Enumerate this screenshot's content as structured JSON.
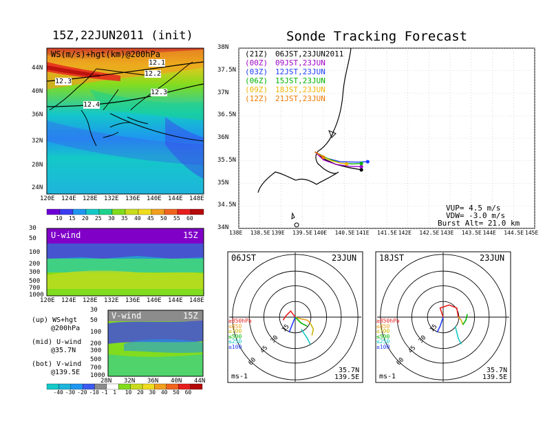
{
  "titles": {
    "left": "15Z,22JUN2011 (init)",
    "right": "Sonde Tracking Forecast"
  },
  "top_map": {
    "label": "WS(m/s)+hgt(km)@200hPa",
    "x_ticks": [
      "120E",
      "124E",
      "128E",
      "132E",
      "136E",
      "140E",
      "144E",
      "148E"
    ],
    "y_ticks": [
      "44N",
      "40N",
      "36N",
      "32N",
      "28N",
      "24N"
    ],
    "contour_labels": [
      "12.1",
      "12.2",
      "12.3",
      "12.3",
      "12.4"
    ]
  },
  "ws_colorbar": {
    "labels": [
      "10",
      "15",
      "20",
      "25",
      "30",
      "35",
      "40",
      "45",
      "50",
      "55",
      "60"
    ],
    "colors": [
      "#6b00d6",
      "#3c3cf0",
      "#1e96f0",
      "#14c8c8",
      "#1ed28c",
      "#82dc1e",
      "#c8dc1e",
      "#f0dc1e",
      "#f0a01e",
      "#f0641e",
      "#e61e1e",
      "#b40a0a"
    ]
  },
  "u_panel": {
    "label": "U-wind",
    "time": "15Z",
    "y_ticks": [
      "30",
      "50",
      "100",
      "200",
      "300",
      "500",
      "700",
      "1000"
    ],
    "x_ticks": [
      "120E",
      "124E",
      "128E",
      "132E",
      "136E",
      "140E",
      "144E",
      "148E"
    ]
  },
  "v_panel": {
    "label": "V-wind",
    "time": "15Z",
    "y_ticks": [
      "30",
      "50",
      "100",
      "200",
      "300",
      "500",
      "700",
      "1000"
    ],
    "x_ticks": [
      "28N",
      "32N",
      "36N",
      "40N",
      "44N"
    ]
  },
  "legend_notes": {
    "up_1": "(up) WS+hgt",
    "up_2": "@200hPa",
    "mid_1": "(mid) U-wind",
    "mid_2": "@35.7N",
    "bot_1": "(bot) V-wind",
    "bot_2": "@139.5E"
  },
  "v_colorbar": {
    "labels": [
      "-40",
      "-30",
      "-20",
      "-10",
      "-1",
      "1",
      "10",
      "20",
      "30",
      "40",
      "50",
      "60"
    ],
    "colors": [
      "#14c8c8",
      "#1eb4dc",
      "#1e96f0",
      "#3c5af0",
      "#8c8c8c",
      "#ffffff",
      "#82dc1e",
      "#c8dc1e",
      "#f0dc1e",
      "#f0a01e",
      "#f0641e",
      "#e61e1e",
      "#b40a0a"
    ]
  },
  "track_map": {
    "x_ticks": [
      "138E",
      "138.5E",
      "139E",
      "139.5E",
      "140E",
      "140.5E",
      "141E",
      "141.5E",
      "142E",
      "142.5E",
      "143E",
      "143.5E",
      "144E",
      "144.5E",
      "145E"
    ],
    "y_ticks": [
      "38N",
      "37.5N",
      "37N",
      "36.5N",
      "36N",
      "35.5N",
      "35N",
      "34.5N",
      "34N"
    ],
    "legend": [
      {
        "code": "(21Z)",
        "time": "06JST,23JUN2011",
        "color": "#000000"
      },
      {
        "code": "(00Z)",
        "time": "09JST,23JUN",
        "color": "#a000c8"
      },
      {
        "code": "(03Z)",
        "time": "12JST,23JUN",
        "color": "#1e3cff"
      },
      {
        "code": "(06Z)",
        "time": "15JST,23JUN",
        "color": "#00b400"
      },
      {
        "code": "(09Z)",
        "time": "18JST,23JUN",
        "color": "#f0b400"
      },
      {
        "code": "(12Z)",
        "time": "21JST,23JUN",
        "color": "#f07800"
      }
    ],
    "vup": "VUP= 4.5 m/s",
    "vdw": "VDW= -3.0 m/s",
    "burst": "Burst Alt= 21.0 km"
  },
  "hodo_left": {
    "time": "06JST",
    "date": "23JUN",
    "rings": [
      "15",
      "30",
      "45",
      "60"
    ],
    "levels": [
      {
        "label": "≥850hPa",
        "color": "#e61e1e"
      },
      {
        "label": "≤850",
        "color": "#f0a01e"
      },
      {
        "label": "≤700",
        "color": "#c8b400"
      },
      {
        "label": "≤500",
        "color": "#00b400"
      },
      {
        "label": "≤250",
        "color": "#14c8c8"
      },
      {
        "label": "≤100",
        "color": "#1e3cff"
      }
    ],
    "unit": "ms-1",
    "lat": "35.7N",
    "lon": "139.5E"
  },
  "hodo_right": {
    "time": "18JST",
    "date": "23JUN",
    "rings": [
      "15",
      "30",
      "45",
      "60"
    ],
    "levels": [
      {
        "label": "≥850hPa",
        "color": "#e61e1e"
      },
      {
        "label": "≤850",
        "color": "#f0a01e"
      },
      {
        "label": "≤700",
        "color": "#c8b400"
      },
      {
        "label": "≤500",
        "color": "#00b400"
      },
      {
        "label": "≤250",
        "color": "#14c8c8"
      },
      {
        "label": "≤100",
        "color": "#1e3cff"
      }
    ],
    "unit": "ms-1",
    "lat": "35.7N",
    "lon": "139.5E"
  },
  "chart_data": [
    {
      "type": "heatmap",
      "title": "WS(m/s)+hgt(km)@200hPa",
      "xlim": [
        120,
        150
      ],
      "ylim": [
        22,
        48
      ],
      "x_ticks": [
        "120E",
        "124E",
        "128E",
        "132E",
        "136E",
        "140E",
        "144E",
        "148E"
      ],
      "y_ticks": [
        "44N",
        "40N",
        "36N",
        "32N",
        "28N",
        "24N"
      ],
      "colorbar_levels": [
        10,
        15,
        20,
        25,
        30,
        35,
        40,
        45,
        50,
        55,
        60
      ],
      "contour_labels_km": [
        12.1,
        12.2,
        12.3,
        12.3,
        12.4
      ]
    },
    {
      "type": "line",
      "title": "Sonde Tracking Forecast",
      "xlim": [
        138,
        145
      ],
      "ylim": [
        34,
        38
      ],
      "series": [
        {
          "name": "(21Z) 06JST,23JUN2011",
          "color": "#000000",
          "x": [
            139.8,
            140.0,
            140.3,
            140.6,
            140.9
          ],
          "y": [
            35.7,
            35.55,
            35.42,
            35.35,
            35.3
          ]
        },
        {
          "name": "(00Z) 09JST,23JUN",
          "color": "#a000c8",
          "x": [
            139.8,
            140.0,
            140.3,
            140.6,
            140.9
          ],
          "y": [
            35.7,
            35.52,
            35.42,
            35.38,
            35.37
          ]
        },
        {
          "name": "(03Z) 12JST,23JUN",
          "color": "#1e3cff",
          "x": [
            139.8,
            140.1,
            140.4,
            140.8,
            141.05
          ],
          "y": [
            35.7,
            35.55,
            35.48,
            35.47,
            35.48
          ]
        },
        {
          "name": "(06Z) 15JST,23JUN",
          "color": "#00b400",
          "x": [
            139.8,
            140.1,
            140.4,
            140.7,
            140.9
          ],
          "y": [
            35.7,
            35.55,
            35.45,
            35.43,
            35.44
          ]
        },
        {
          "name": "(09Z) 18JST,23JUN",
          "color": "#f0b400",
          "x": [
            139.8,
            140.0,
            140.2,
            140.4,
            140.55
          ],
          "y": [
            35.7,
            35.58,
            35.5,
            35.45,
            35.43
          ]
        },
        {
          "name": "(12Z) 21JST,23JUN",
          "color": "#f07800",
          "x": [
            139.8,
            139.95,
            140.0
          ],
          "y": [
            35.7,
            35.62,
            35.58
          ]
        }
      ]
    },
    {
      "type": "scatter",
      "title": "06JST 23JUN",
      "rings": [
        15,
        30,
        45,
        60
      ],
      "series": [
        {
          "name": "≥850hPa",
          "color": "#e61e1e",
          "u": [
            0,
            -3,
            -6,
            -8
          ],
          "v": [
            0,
            4,
            1,
            -2
          ]
        },
        {
          "name": "≤850",
          "color": "#f0a01e",
          "u": [
            0,
            3,
            8,
            10
          ],
          "v": [
            0,
            -1,
            -2,
            -4
          ]
        },
        {
          "name": "≤700",
          "color": "#c8b400",
          "u": [
            10,
            12,
            11
          ],
          "v": [
            -4,
            -8,
            -12
          ]
        },
        {
          "name": "≤500",
          "color": "#00b400",
          "u": [
            0,
            4,
            8
          ],
          "v": [
            0,
            -4,
            -6
          ]
        },
        {
          "name": "≤250",
          "color": "#14c8c8",
          "u": [
            4,
            8,
            10
          ],
          "v": [
            -8,
            -14,
            -18
          ]
        },
        {
          "name": "≤100",
          "color": "#1e3cff",
          "u": [
            0,
            -2,
            -4
          ],
          "v": [
            0,
            -5,
            -10
          ]
        }
      ]
    },
    {
      "type": "scatter",
      "title": "18JST 23JUN",
      "rings": [
        15,
        30,
        45,
        60
      ],
      "series": [
        {
          "name": "≥850hPa",
          "color": "#e61e1e",
          "u": [
            0,
            -2,
            4,
            9,
            10
          ],
          "v": [
            0,
            6,
            8,
            6,
            0
          ]
        },
        {
          "name": "≤850",
          "color": "#f0a01e",
          "u": [
            10,
            12
          ],
          "v": [
            0,
            -2
          ]
        },
        {
          "name": "≤700",
          "color": "#c8b400",
          "u": [
            12,
            13
          ],
          "v": [
            -2,
            -5
          ]
        },
        {
          "name": "≤500",
          "color": "#00b400",
          "u": [
            13,
            15,
            16
          ],
          "v": [
            -5,
            -2,
            2
          ]
        },
        {
          "name": "≤250",
          "color": "#14c8c8",
          "u": [
            8,
            10,
            12
          ],
          "v": [
            -6,
            -14,
            -18
          ]
        },
        {
          "name": "≤100",
          "color": "#1e3cff",
          "u": [
            0,
            -2,
            -4
          ],
          "v": [
            0,
            -6,
            -10
          ]
        }
      ]
    }
  ]
}
